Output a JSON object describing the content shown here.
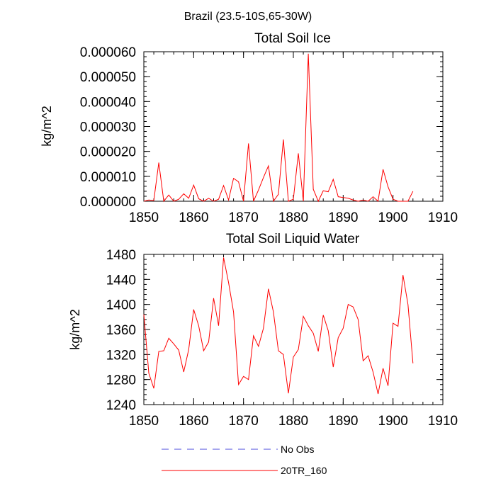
{
  "main_title": "Brazil (23.5-10S,65-30W)",
  "chart_data": [
    {
      "type": "line",
      "title": "Total Soil Ice",
      "xlabel": "",
      "ylabel": "kg/m^2",
      "xlim": [
        1850,
        1910
      ],
      "ylim": [
        0,
        6e-05
      ],
      "xticks": [
        1850,
        1860,
        1870,
        1880,
        1890,
        1900,
        1910
      ],
      "xtick_labels": [
        "1850",
        "1860",
        "1870",
        "1880",
        "1890",
        "1900",
        "1910"
      ],
      "yticks": [
        0,
        1e-05,
        2e-05,
        3e-05,
        4e-05,
        5e-05,
        6e-05
      ],
      "ytick_labels": [
        "0.000000",
        "0.000010",
        "0.000020",
        "0.000030",
        "0.000040",
        "0.000050",
        "0.000060"
      ],
      "series": [
        {
          "name": "20TR_160",
          "color": "#ff0000",
          "x": [
            1850,
            1851,
            1852,
            1853,
            1854,
            1855,
            1856,
            1857,
            1858,
            1859,
            1860,
            1861,
            1862,
            1863,
            1864,
            1865,
            1866,
            1867,
            1868,
            1869,
            1870,
            1871,
            1872,
            1873,
            1874,
            1875,
            1876,
            1877,
            1878,
            1879,
            1880,
            1881,
            1882,
            1883,
            1884,
            1885,
            1886,
            1887,
            1888,
            1889,
            1890,
            1891,
            1892,
            1893,
            1894,
            1895,
            1896,
            1897,
            1898,
            1899,
            1900,
            1901,
            1902,
            1903,
            1904
          ],
          "values": [
            0,
            5e-07,
            3e-07,
            1.55e-05,
            0,
            2.5e-06,
            0,
            8e-07,
            3e-06,
            1.2e-06,
            6.5e-06,
            1e-06,
            0,
            1.2e-06,
            0,
            8e-07,
            6.3e-06,
            5e-07,
            9.2e-06,
            7.8e-06,
            0,
            2.32e-05,
            0,
            4.5e-06,
            9.5e-06,
            1.42e-05,
            0,
            2.8e-06,
            2.48e-05,
            0,
            8e-07,
            1.92e-05,
            0,
            5.92e-05,
            4.8e-06,
            0,
            4.2e-06,
            3.8e-06,
            8.8e-06,
            1.8e-06,
            1.5e-06,
            1.2e-06,
            5e-07,
            0,
            5e-07,
            0,
            1.8e-06,
            0,
            1.28e-05,
            5.8e-06,
            8e-07,
            0,
            0,
            0,
            4e-06
          ]
        }
      ]
    },
    {
      "type": "line",
      "title": "Total Soil Liquid Water",
      "xlabel": "",
      "ylabel": "kg/m^2",
      "xlim": [
        1850,
        1910
      ],
      "ylim": [
        1240,
        1480
      ],
      "xticks": [
        1850,
        1860,
        1870,
        1880,
        1890,
        1900,
        1910
      ],
      "xtick_labels": [
        "1850",
        "1860",
        "1870",
        "1880",
        "1890",
        "1900",
        "1910"
      ],
      "yticks": [
        1240,
        1280,
        1320,
        1360,
        1400,
        1440,
        1480
      ],
      "ytick_labels": [
        "1240",
        "1280",
        "1320",
        "1360",
        "1400",
        "1440",
        "1480"
      ],
      "series": [
        {
          "name": "20TR_160",
          "color": "#ff0000",
          "x": [
            1850,
            1851,
            1852,
            1853,
            1854,
            1855,
            1856,
            1857,
            1858,
            1859,
            1860,
            1861,
            1862,
            1863,
            1864,
            1865,
            1866,
            1867,
            1868,
            1869,
            1870,
            1871,
            1872,
            1873,
            1874,
            1875,
            1876,
            1877,
            1878,
            1879,
            1880,
            1881,
            1882,
            1883,
            1884,
            1885,
            1886,
            1887,
            1888,
            1889,
            1890,
            1891,
            1892,
            1893,
            1894,
            1895,
            1896,
            1897,
            1898,
            1899,
            1900,
            1901,
            1902,
            1903,
            1904
          ],
          "values": [
            1384,
            1290,
            1266,
            1325,
            1326,
            1346,
            1337,
            1327,
            1292,
            1328,
            1392,
            1366,
            1326,
            1340,
            1410,
            1366,
            1475,
            1435,
            1388,
            1272,
            1285,
            1280,
            1350,
            1333,
            1362,
            1425,
            1388,
            1326,
            1320,
            1258,
            1316,
            1328,
            1381,
            1366,
            1354,
            1325,
            1383,
            1358,
            1300,
            1347,
            1362,
            1400,
            1396,
            1376,
            1310,
            1318,
            1292,
            1257,
            1298,
            1270,
            1370,
            1365,
            1447,
            1400,
            1306
          ]
        }
      ]
    }
  ],
  "legend": {
    "items": [
      {
        "label": "No Obs",
        "color": "#4b4bdc",
        "dash": "dashed"
      },
      {
        "label": "20TR_160",
        "color": "#ff0000",
        "dash": "solid"
      }
    ]
  }
}
